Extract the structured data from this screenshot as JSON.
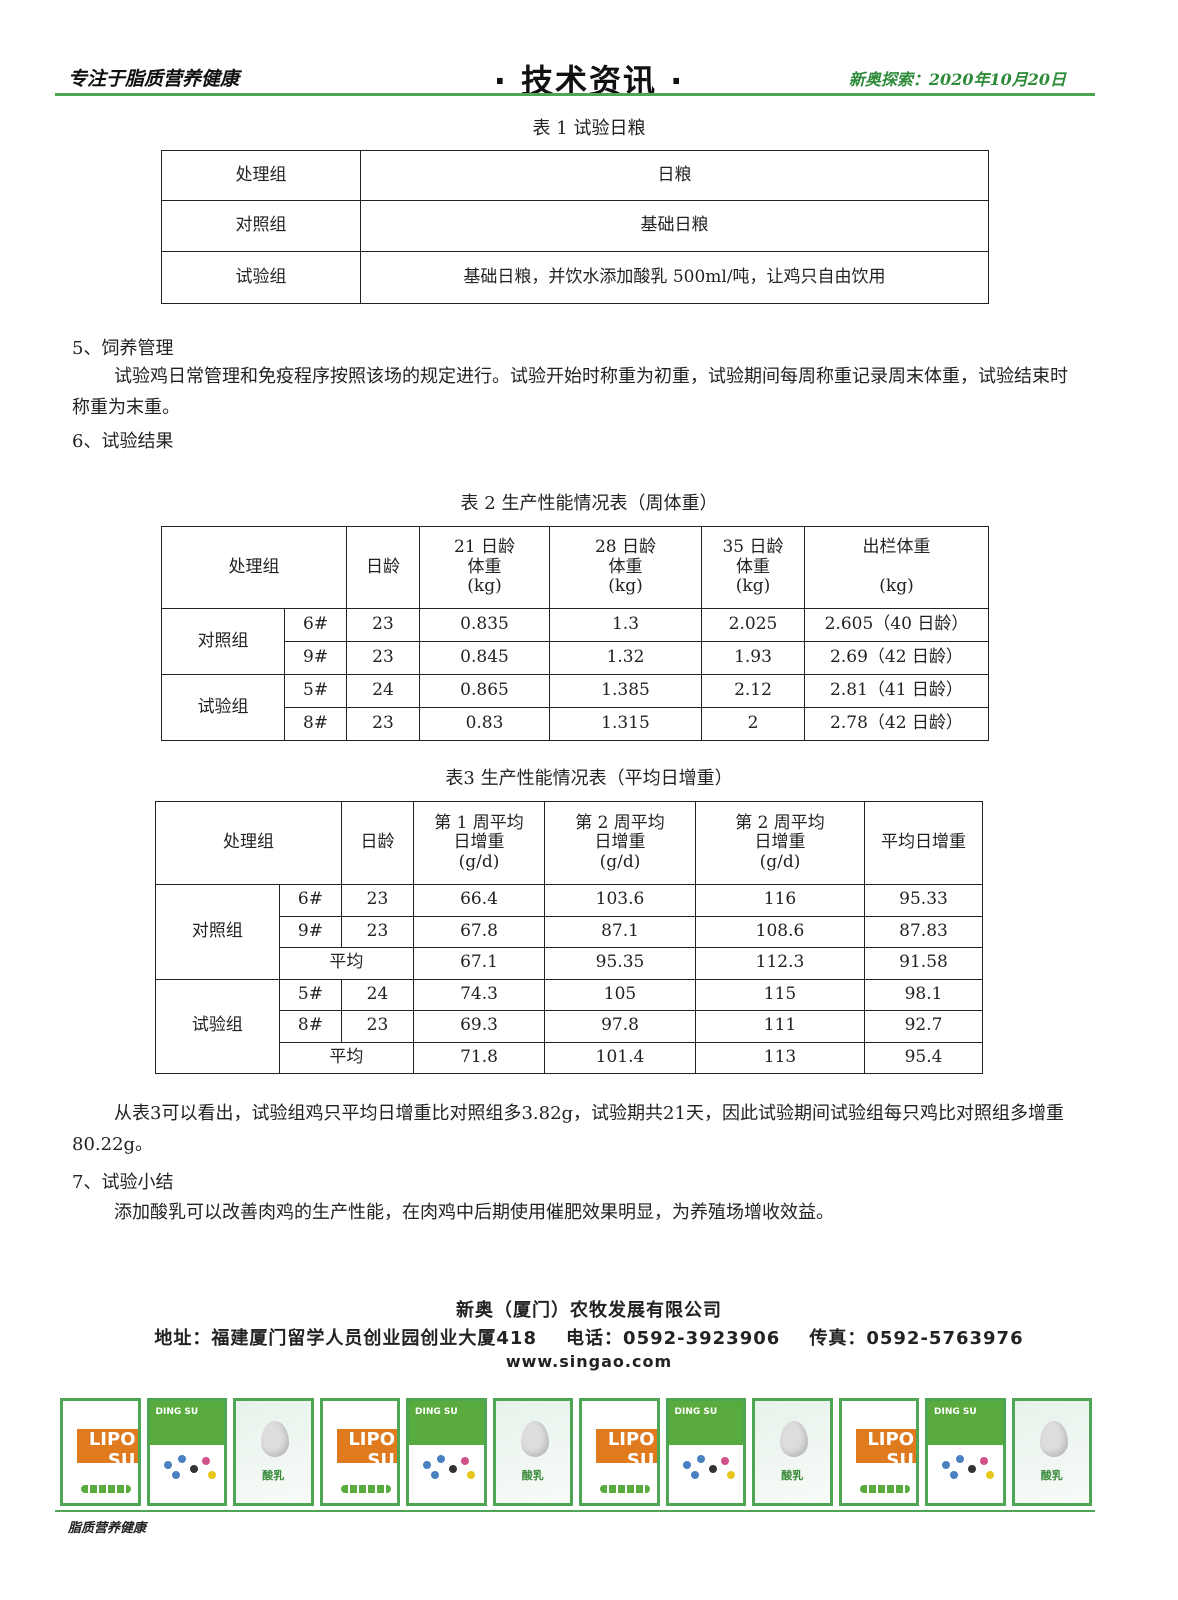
{
  "header": {
    "slogan": "专注于脂质营养健康",
    "title": "· 技术资讯 ·",
    "issue": "新奥探索：2020年10月20日",
    "accent": "#4ea554"
  },
  "table1": {
    "caption": "表 1  试验日粮",
    "headers": [
      "处理组",
      "日粮"
    ],
    "rows": [
      [
        "对照组",
        "基础日粮"
      ],
      [
        "试验组",
        "基础日粮，并饮水添加酸乳 500ml/吨，让鸡只自由饮用"
      ]
    ]
  },
  "section5": {
    "title": "5、饲养管理",
    "text": "试验鸡日常管理和免疫程序按照该场的规定进行。试验开始时称重为初重，试验期间每周称重记录周末体重，试验结束时称重为末重。"
  },
  "section6": {
    "title": "6、试验结果"
  },
  "table2": {
    "caption": "表 2   生产性能情况表（周体重）",
    "headers": [
      "处理组",
      "日龄",
      "21 日龄\n体重\n(kg)",
      "28 日龄\n体重\n(kg)",
      "35 日龄\n体重\n(kg)",
      "出栏体重\n\n(kg)"
    ],
    "groups": [
      {
        "name": "对照组",
        "rows": [
          [
            "6#",
            "23",
            "0.835",
            "1.3",
            "2.025",
            "2.605（40 日龄）"
          ],
          [
            "9#",
            "23",
            "0.845",
            "1.32",
            "1.93",
            "2.69（42 日龄）"
          ]
        ]
      },
      {
        "name": "试验组",
        "rows": [
          [
            "5#",
            "24",
            "0.865",
            "1.385",
            "2.12",
            "2.81（41 日龄）"
          ],
          [
            "8#",
            "23",
            "0.83",
            "1.315",
            "2",
            "2.78（42 日龄）"
          ]
        ]
      }
    ]
  },
  "table3": {
    "caption": "表3   生产性能情况表（平均日增重）",
    "headers": [
      "处理组",
      "日龄",
      "第 1 周平均\n日增重\n(g/d)",
      "第 2 周平均\n日增重\n(g/d)",
      "第 2 周平均\n日增重\n(g/d)",
      "平均日增重"
    ],
    "groups": [
      {
        "name": "对照组",
        "rows": [
          [
            "6#",
            "23",
            "66.4",
            "103.6",
            "116",
            "95.33"
          ],
          [
            "9#",
            "23",
            "67.8",
            "87.1",
            "108.6",
            "87.83"
          ]
        ],
        "avg": [
          "平均",
          "67.1",
          "95.35",
          "112.3",
          "91.58"
        ]
      },
      {
        "name": "试验组",
        "rows": [
          [
            "5#",
            "24",
            "74.3",
            "105",
            "115",
            "98.1"
          ],
          [
            "8#",
            "23",
            "69.3",
            "97.8",
            "111",
            "92.7"
          ]
        ],
        "avg": [
          "平均",
          "71.8",
          "101.4",
          "113",
          "95.4"
        ]
      }
    ]
  },
  "conclusion": "从表3可以看出，试验组鸡只平均日增重比对照组多3.82g，试验期共21天，因此试验期间试验组每只鸡比对照组多增重80.22g。",
  "section7": {
    "title": "7、试验小结",
    "text": "添加酸乳可以改善肉鸡的生产性能，在肉鸡中后期使用催肥效果明显，为养殖场增收效益。"
  },
  "company": {
    "name": "新奥（厦门）农牧发展有限公司",
    "address": "地址：福建厦门留学人员创业园创业大厦418    电话：0592-3923906    传真：0592-5763976",
    "website": "www.singao.com"
  },
  "products": [
    {
      "type": "lipo",
      "label": "LIPO SU"
    },
    {
      "type": "dingsu",
      "label": "DING SU"
    },
    {
      "type": "suanru",
      "label": "酸乳"
    },
    {
      "type": "lipo",
      "label": "LIPO SU"
    },
    {
      "type": "dingsu",
      "label": "DING SU"
    },
    {
      "type": "suanru",
      "label": "酸乳"
    },
    {
      "type": "lipo",
      "label": "LIPO SU"
    },
    {
      "type": "dingsu",
      "label": "DING SU"
    },
    {
      "type": "suanru",
      "label": "酸乳"
    },
    {
      "type": "lipo",
      "label": "LIPO SU"
    },
    {
      "type": "dingsu",
      "label": "DING SU"
    },
    {
      "type": "suanru",
      "label": "酸乳"
    }
  ],
  "footer": {
    "slogan": "脂质营养健康"
  }
}
